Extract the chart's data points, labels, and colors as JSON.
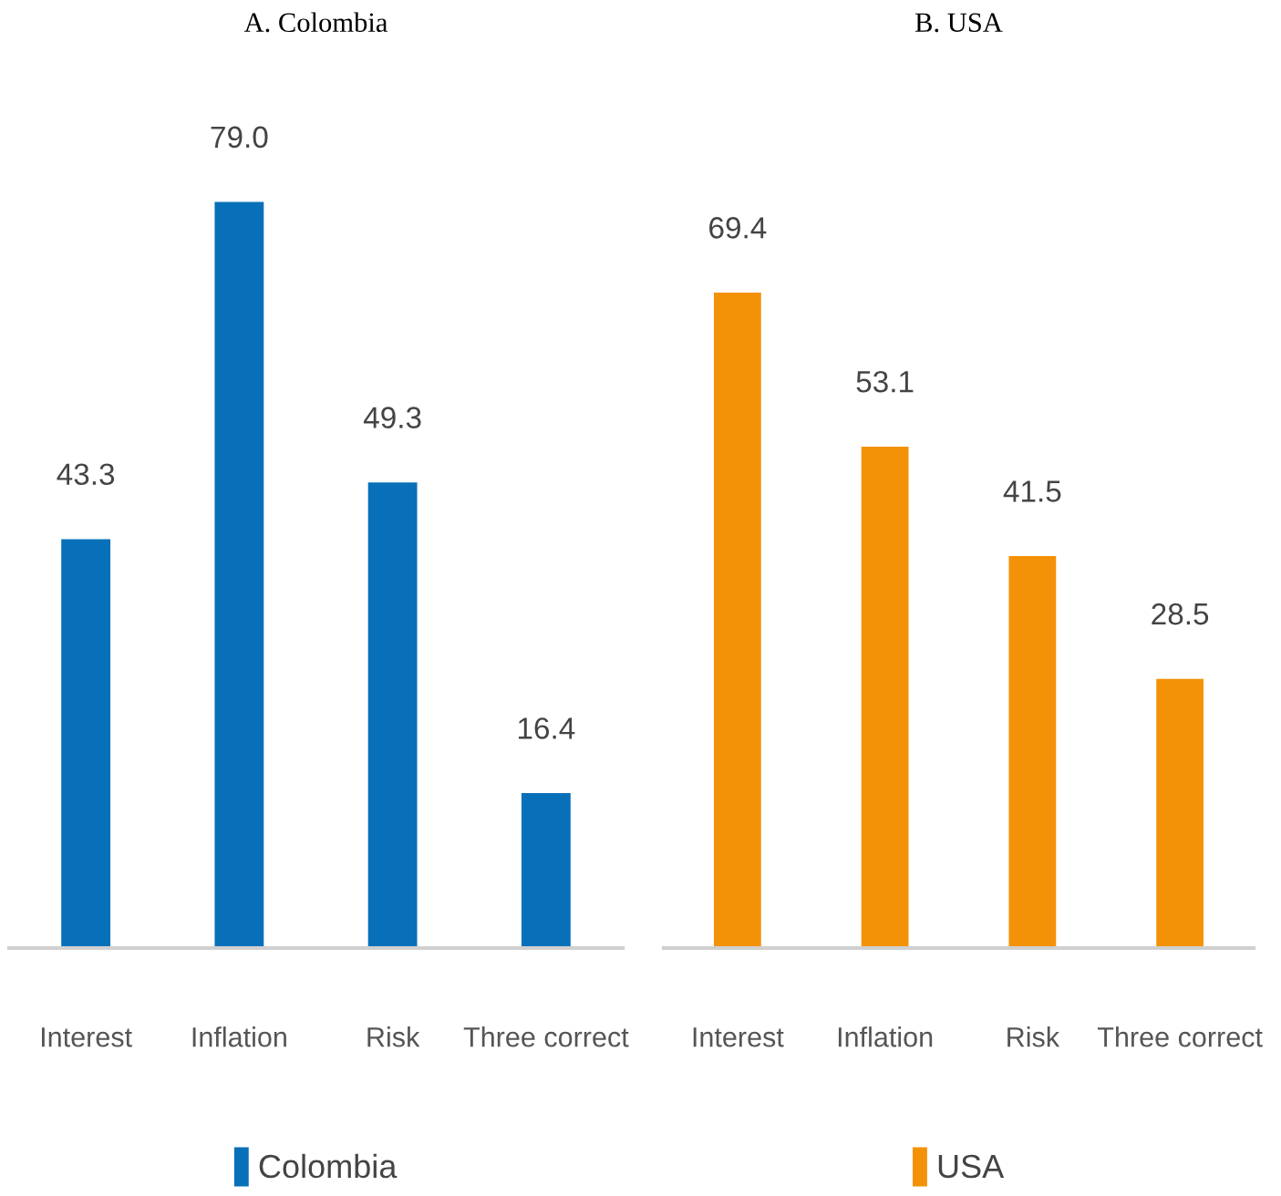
{
  "chart_data": [
    {
      "type": "bar",
      "title": "A. Colombia",
      "categories": [
        "Interest",
        "Inflation",
        "Risk",
        "Three correct"
      ],
      "series": [
        {
          "name": "Colombia",
          "color": "#0870b9",
          "values": [
            43.3,
            79.0,
            49.3,
            16.4
          ],
          "value_labels": [
            "43.3",
            "79.0",
            "49.3",
            "16.4"
          ]
        }
      ],
      "legend": "bottom"
    },
    {
      "type": "bar",
      "title": "B. USA",
      "categories": [
        "Interest",
        "Inflation",
        "Risk",
        "Three correct"
      ],
      "series": [
        {
          "name": "USA",
          "color": "#f39207",
          "values": [
            69.4,
            53.1,
            41.5,
            28.5
          ],
          "value_labels": [
            "69.4",
            "53.1",
            "41.5",
            "28.5"
          ]
        }
      ],
      "legend": "bottom"
    }
  ]
}
